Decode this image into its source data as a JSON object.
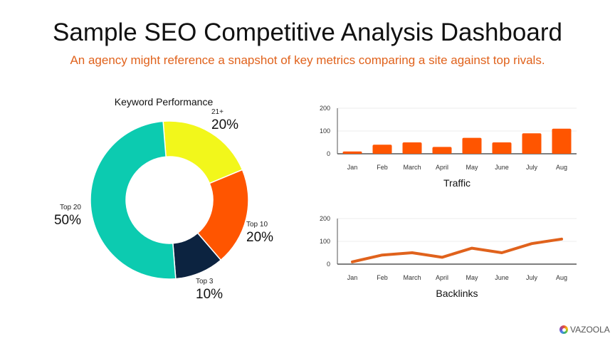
{
  "title": "Sample SEO Competitive Analysis Dashboard",
  "subtitle": "An agency might reference a snapshot of key metrics comparing a site against top rivals.",
  "logo_text": "VAZOOLA",
  "colors": {
    "accent": "#ff5500",
    "line": "#e0621c"
  },
  "chart_data": [
    {
      "type": "pie",
      "title": "Keyword Performance",
      "donut": true,
      "slices": [
        {
          "label": "21+",
          "value": 20,
          "display": "20%",
          "color": "#f2f71b"
        },
        {
          "label": "Top 10",
          "value": 20,
          "display": "20%",
          "color": "#ff5500"
        },
        {
          "label": "Top 3",
          "value": 10,
          "display": "10%",
          "color": "#0c2340"
        },
        {
          "label": "Top 20",
          "value": 50,
          "display": "50%",
          "color": "#0ccbb0"
        }
      ]
    },
    {
      "type": "bar",
      "title": "Traffic",
      "categories": [
        "Jan",
        "Feb",
        "March",
        "April",
        "May",
        "June",
        "July",
        "Aug"
      ],
      "values": [
        10,
        40,
        50,
        30,
        70,
        50,
        90,
        110
      ],
      "ylim": [
        0,
        200
      ],
      "yticks": [
        "0",
        "100",
        "200"
      ],
      "grid": true
    },
    {
      "type": "line",
      "title": "Backlinks",
      "categories": [
        "Jan",
        "Feb",
        "March",
        "April",
        "May",
        "June",
        "July",
        "Aug"
      ],
      "values": [
        10,
        40,
        50,
        30,
        70,
        50,
        90,
        110
      ],
      "ylim": [
        0,
        200
      ],
      "yticks": [
        "0",
        "100",
        "200"
      ],
      "grid": true
    }
  ]
}
